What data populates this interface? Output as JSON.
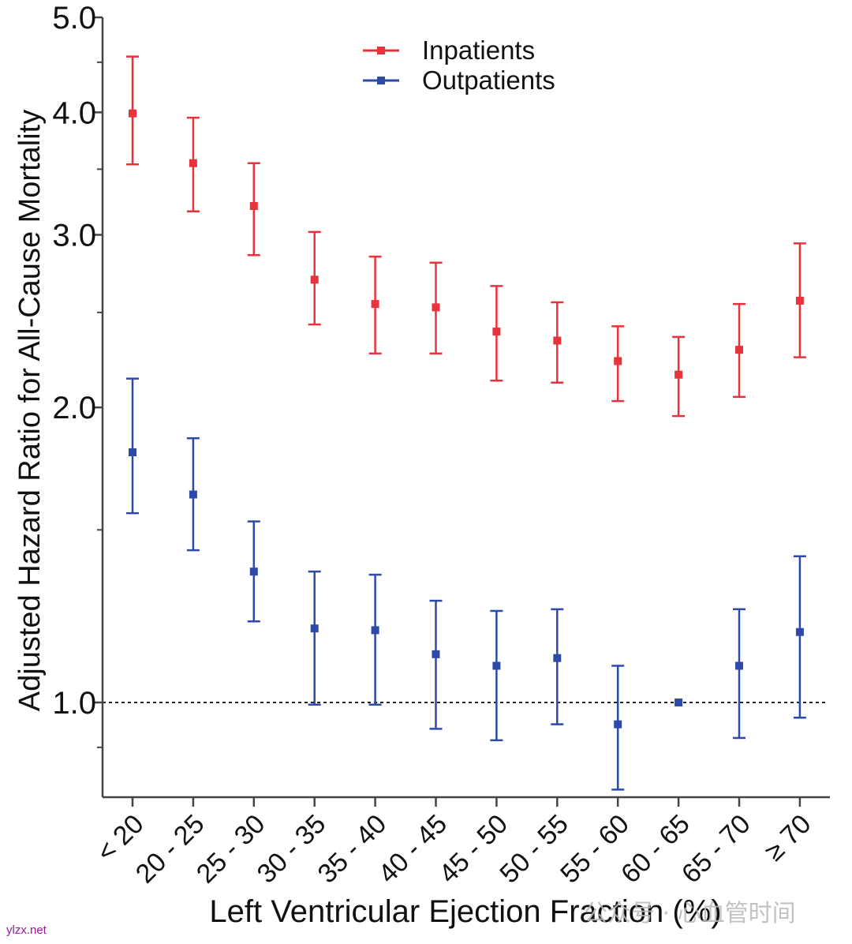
{
  "chart_data": {
    "type": "scatter",
    "ylabel": "Adjusted Hazard Ratio for All-Cause Mortality",
    "xlabel": "Left Ventricular Ejection Fraction (%)",
    "y_scale": "log",
    "ylim": [
      0.85,
      5.0
    ],
    "y_ticks": [
      1.0,
      2.0,
      3.0,
      4.0,
      5.0
    ],
    "y_tick_labels": [
      "1.0",
      "2.0",
      "3.0",
      "4.0",
      "5.0"
    ],
    "reference_line": 1.0,
    "legend_position": "top-center",
    "categories": [
      "< 20",
      "20 - 25",
      "25 - 30",
      "30 - 35",
      "35 - 40",
      "40 - 45",
      "45 - 50",
      "50 - 55",
      "55 - 60",
      "60 - 65",
      "65 - 70",
      "≥ 70"
    ],
    "series": [
      {
        "name": "Inpatients",
        "color": "#e8323c",
        "values": [
          3.99,
          3.55,
          3.21,
          2.7,
          2.55,
          2.53,
          2.39,
          2.34,
          2.23,
          2.16,
          2.29,
          2.57
        ],
        "lower": [
          3.54,
          3.17,
          2.86,
          2.43,
          2.27,
          2.27,
          2.13,
          2.12,
          2.03,
          1.96,
          2.05,
          2.25
        ],
        "upper": [
          4.56,
          3.95,
          3.55,
          3.02,
          2.85,
          2.81,
          2.66,
          2.56,
          2.42,
          2.36,
          2.55,
          2.94
        ]
      },
      {
        "name": "Outpatients",
        "color": "#2e4aa8",
        "values": [
          1.8,
          1.63,
          1.36,
          1.19,
          1.185,
          1.12,
          1.09,
          1.11,
          0.95,
          1.0,
          1.09,
          1.18
        ],
        "lower": [
          1.56,
          1.43,
          1.21,
          0.995,
          0.995,
          0.94,
          0.915,
          0.95,
          0.815,
          1.0,
          0.92,
          0.965
        ],
        "upper": [
          2.14,
          1.86,
          1.53,
          1.36,
          1.35,
          1.27,
          1.24,
          1.245,
          1.09,
          1.0,
          1.245,
          1.41
        ]
      }
    ]
  },
  "watermark": {
    "site": "ylzx.net",
    "cn": "公众号 · 心血管时间"
  }
}
